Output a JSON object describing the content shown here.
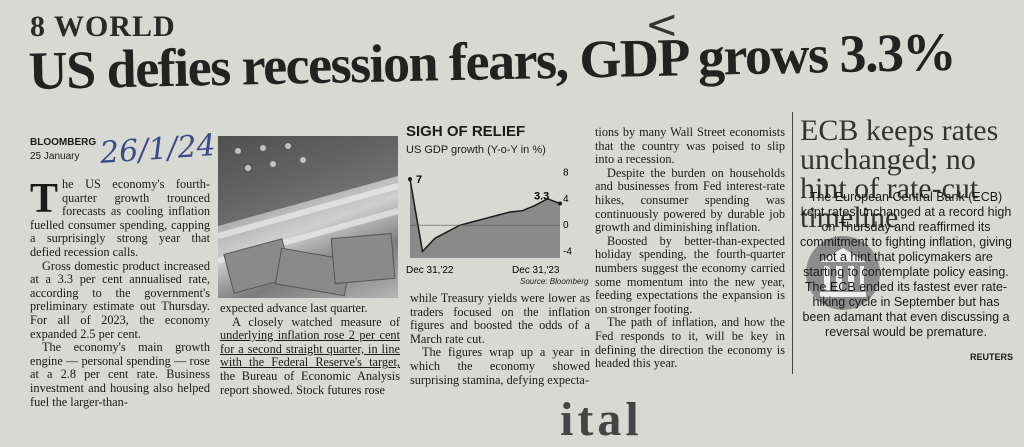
{
  "page": {
    "section": "8 WORLD",
    "handwriting_top": "<",
    "bottom_fragment": "ital"
  },
  "article": {
    "headline": "US defies recession fears, GDP grows 3.3%",
    "byline": "BLOOMBERG",
    "dateline": "25 January",
    "handwritten_note": "26/1/24",
    "dropcap": "T",
    "col1_p1": "he US economy's fourth-quarter growth trounced forecasts as cooling inflation fuelled consumer spending, capping a surprisingly strong year that defied recession calls.",
    "col1_p2": "Gross domestic product increased at a 3.3 per cent annualised rate, according to the government's preliminary estimate out Thursday. For all of 2023, the economy expanded 2.5 per cent.",
    "col1_p3": "The economy's main growth engine — personal spending — rose at a 2.8 per cent rate. Business investment and housing also helped fuel the larger-than-",
    "col2_p1": "expected advance last quarter.",
    "col2_p2a": "A closely watched measure of ",
    "col2_p2b": "underlying inflation rose 2 per cent for a second straight quarter, in line with the Federal Reserve's target,",
    "col2_p2c": " the Bureau of Economic Analysis report showed. Stock futures rose",
    "col3_p1": "while Treasury yields were lower as traders focused on the inflation figures and boosted the odds of a March rate cut.",
    "col3_p2": "The figures wrap up a year in which the economy showed surprising stamina, defying expecta-",
    "col4_p1": "tions by many Wall Street economists that the country was poised to slip into a recession.",
    "col4_p2": "Despite the burden on households and businesses from Fed interest-rate hikes, consumer spending was continuously powered by durable job growth and diminishing inflation.",
    "col4_p3": "Boosted by better-than-expected holiday spending, the fourth-quarter numbers suggest the economy carried some momentum into the new year, feeding expectations the expansion is on stronger footing.",
    "col4_p4": "The path of inflation, and how the Fed responds to it, will be key in defining the direction the economy is headed this year."
  },
  "chart_data": {
    "type": "area",
    "title": "SIGH OF RELIEF",
    "subtitle": "US GDP growth (Y-o-Y in %)",
    "x": [
      "Dec 31,'22",
      "",
      "",
      "",
      "",
      "",
      "",
      "",
      "",
      "",
      "",
      "",
      "Dec 31,'23"
    ],
    "values": [
      7,
      -4,
      -2,
      -1,
      0,
      0.5,
      1,
      1.5,
      2,
      2.2,
      3,
      4,
      3.3
    ],
    "x_tick_labels": [
      "Dec 31,'22",
      "Dec 31,'23"
    ],
    "y_ticks": [
      "8",
      "4",
      "0",
      "-4"
    ],
    "ylim": [
      -5,
      9
    ],
    "annotations": [
      {
        "label": "7"
      },
      {
        "label": "3.3"
      }
    ],
    "source": "Source: Bloomberg",
    "fill_color": "#8a8a8a",
    "line_color": "#1a1a1a"
  },
  "sidebar": {
    "title": "ECB keeps rates unchanged; no hint of rate-cut timeline",
    "body_p1": "The European Central Bank (ECB) kept rates unchanged at a record high on Thursday and reaffirmed its commitment to fighting inflation, giving not a hint that policymakers are starting to contemplate policy easing. The ECB ended its fastest ever rate-hiking cycle in September but has been adamant that even discussing a reversal would be premature.",
    "credit": "REUTERS"
  }
}
